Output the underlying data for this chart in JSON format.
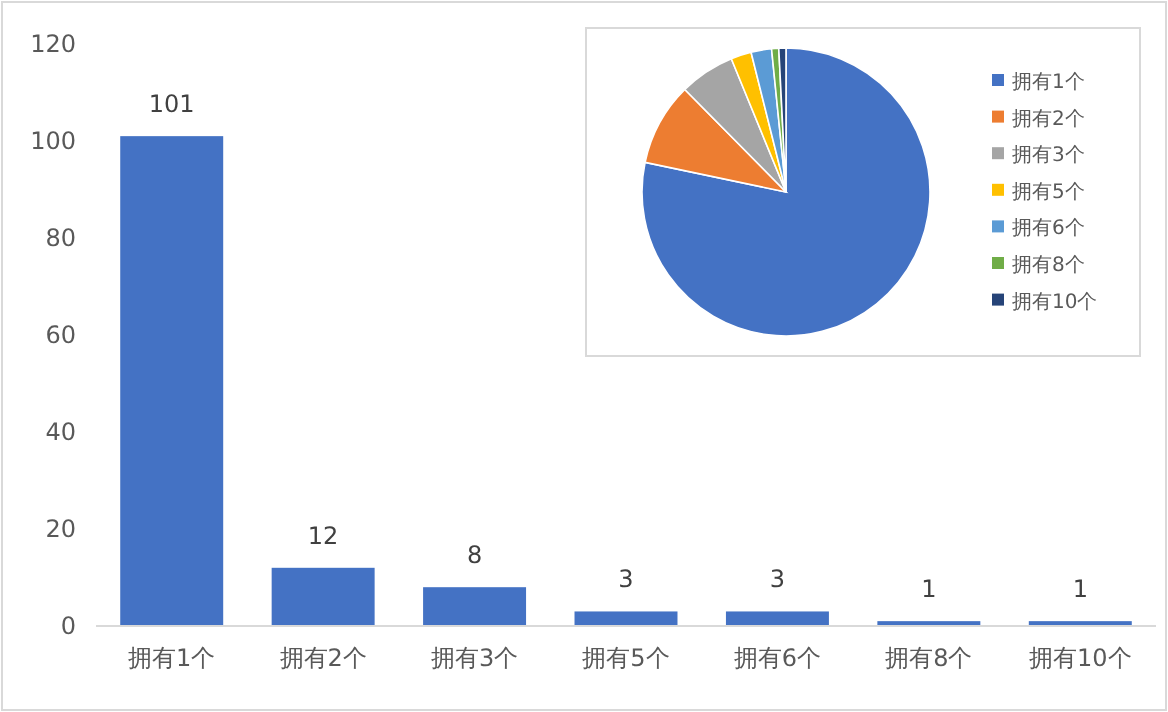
{
  "chart_data": [
    {
      "type": "bar",
      "categories": [
        "拥有1个",
        "拥有2个",
        "拥有3个",
        "拥有5个",
        "拥有6个",
        "拥有8个",
        "拥有10个"
      ],
      "values": [
        101,
        12,
        8,
        3,
        3,
        1,
        1
      ],
      "color": "#4472c4",
      "ylim": [
        0,
        120
      ],
      "yticks": [
        0,
        20,
        40,
        60,
        80,
        100,
        120
      ],
      "data_labels": true
    },
    {
      "type": "pie",
      "categories": [
        "拥有1个",
        "拥有2个",
        "拥有3个",
        "拥有5个",
        "拥有6个",
        "拥有8个",
        "拥有10个"
      ],
      "values": [
        78.3,
        9.3,
        6.2,
        2.3,
        2.3,
        0.8,
        0.8
      ],
      "colors": [
        "#4472c4",
        "#ed7d31",
        "#a5a5a5",
        "#ffc000",
        "#5b9bd5",
        "#70ad47",
        "#264478"
      ],
      "legend": "right"
    }
  ]
}
